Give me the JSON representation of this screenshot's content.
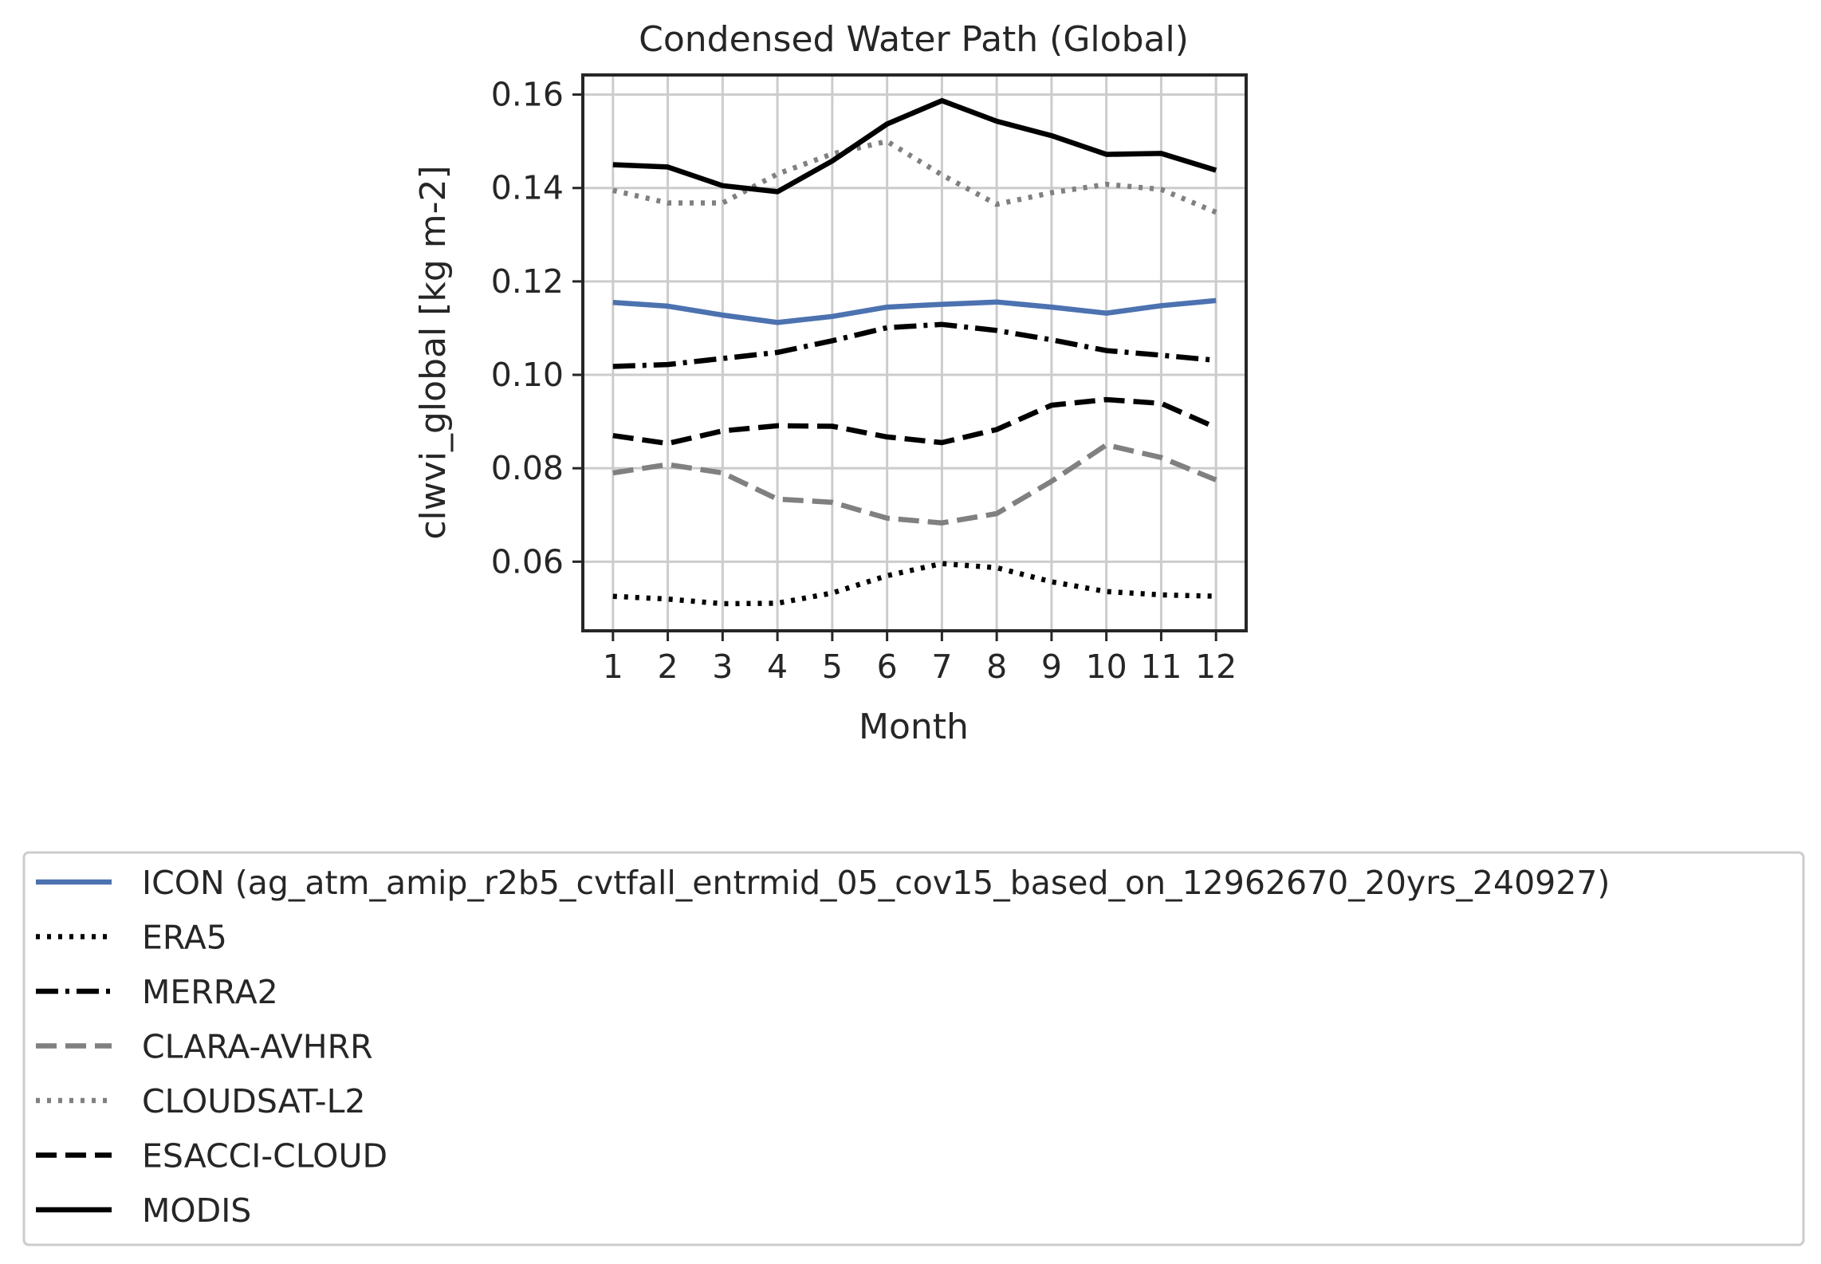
{
  "chart_data": {
    "type": "line",
    "title": "Condensed Water Path (Global)",
    "xlabel": "Month",
    "ylabel": "clwvi_global [kg m-2]",
    "x": [
      1,
      2,
      3,
      4,
      5,
      6,
      7,
      8,
      9,
      10,
      11,
      12
    ],
    "x_ticks": [
      "1",
      "2",
      "3",
      "4",
      "5",
      "6",
      "7",
      "8",
      "9",
      "10",
      "11",
      "12"
    ],
    "xlim": [
      0.45,
      12.55
    ],
    "ylim": [
      0.0452,
      0.1642
    ],
    "y_ticks": [
      "0.06",
      "0.08",
      "0.10",
      "0.12",
      "0.14",
      "0.16"
    ],
    "grid": true,
    "legend_position": "below",
    "series": [
      {
        "name": "ICON (ag_atm_amip_r2b5_cvtfall_entrmid_05_cov15_based_on_12962670_20yrs_240927)",
        "color": "#4c72b0",
        "style": "solid",
        "values": [
          0.1155,
          0.1147,
          0.1128,
          0.1112,
          0.1125,
          0.1145,
          0.1151,
          0.1156,
          0.1145,
          0.1132,
          0.1148,
          0.1159
        ]
      },
      {
        "name": "ERA5",
        "color": "#000000",
        "style": "dotted",
        "values": [
          0.0526,
          0.052,
          0.051,
          0.0511,
          0.0533,
          0.057,
          0.0596,
          0.0587,
          0.0557,
          0.0536,
          0.0529,
          0.0526
        ]
      },
      {
        "name": "MERRA2",
        "color": "#000000",
        "style": "dashdot",
        "values": [
          0.1018,
          0.1022,
          0.1035,
          0.1048,
          0.1073,
          0.1101,
          0.1108,
          0.1095,
          0.1075,
          0.1052,
          0.1042,
          0.1031
        ]
      },
      {
        "name": "CLARA-AVHRR",
        "color": "#808080",
        "style": "dashed",
        "values": [
          0.079,
          0.0808,
          0.079,
          0.0734,
          0.0727,
          0.0693,
          0.0683,
          0.0703,
          0.0772,
          0.085,
          0.0823,
          0.0775
        ]
      },
      {
        "name": "CLOUDSAT-L2",
        "color": "#808080",
        "style": "dotted",
        "values": [
          0.1395,
          0.1368,
          0.1368,
          0.143,
          0.1473,
          0.15,
          0.1428,
          0.1365,
          0.139,
          0.1408,
          0.1397,
          0.1348
        ]
      },
      {
        "name": "ESACCI-CLOUD",
        "color": "#000000",
        "style": "dashed",
        "values": [
          0.087,
          0.0853,
          0.088,
          0.0891,
          0.089,
          0.0867,
          0.0855,
          0.0883,
          0.0935,
          0.0947,
          0.0939,
          0.0887
        ]
      },
      {
        "name": "MODIS",
        "color": "#000000",
        "style": "solid",
        "values": [
          0.145,
          0.1445,
          0.1405,
          0.1392,
          0.1458,
          0.1537,
          0.1587,
          0.1543,
          0.1512,
          0.1472,
          0.1474,
          0.1438
        ]
      }
    ]
  }
}
